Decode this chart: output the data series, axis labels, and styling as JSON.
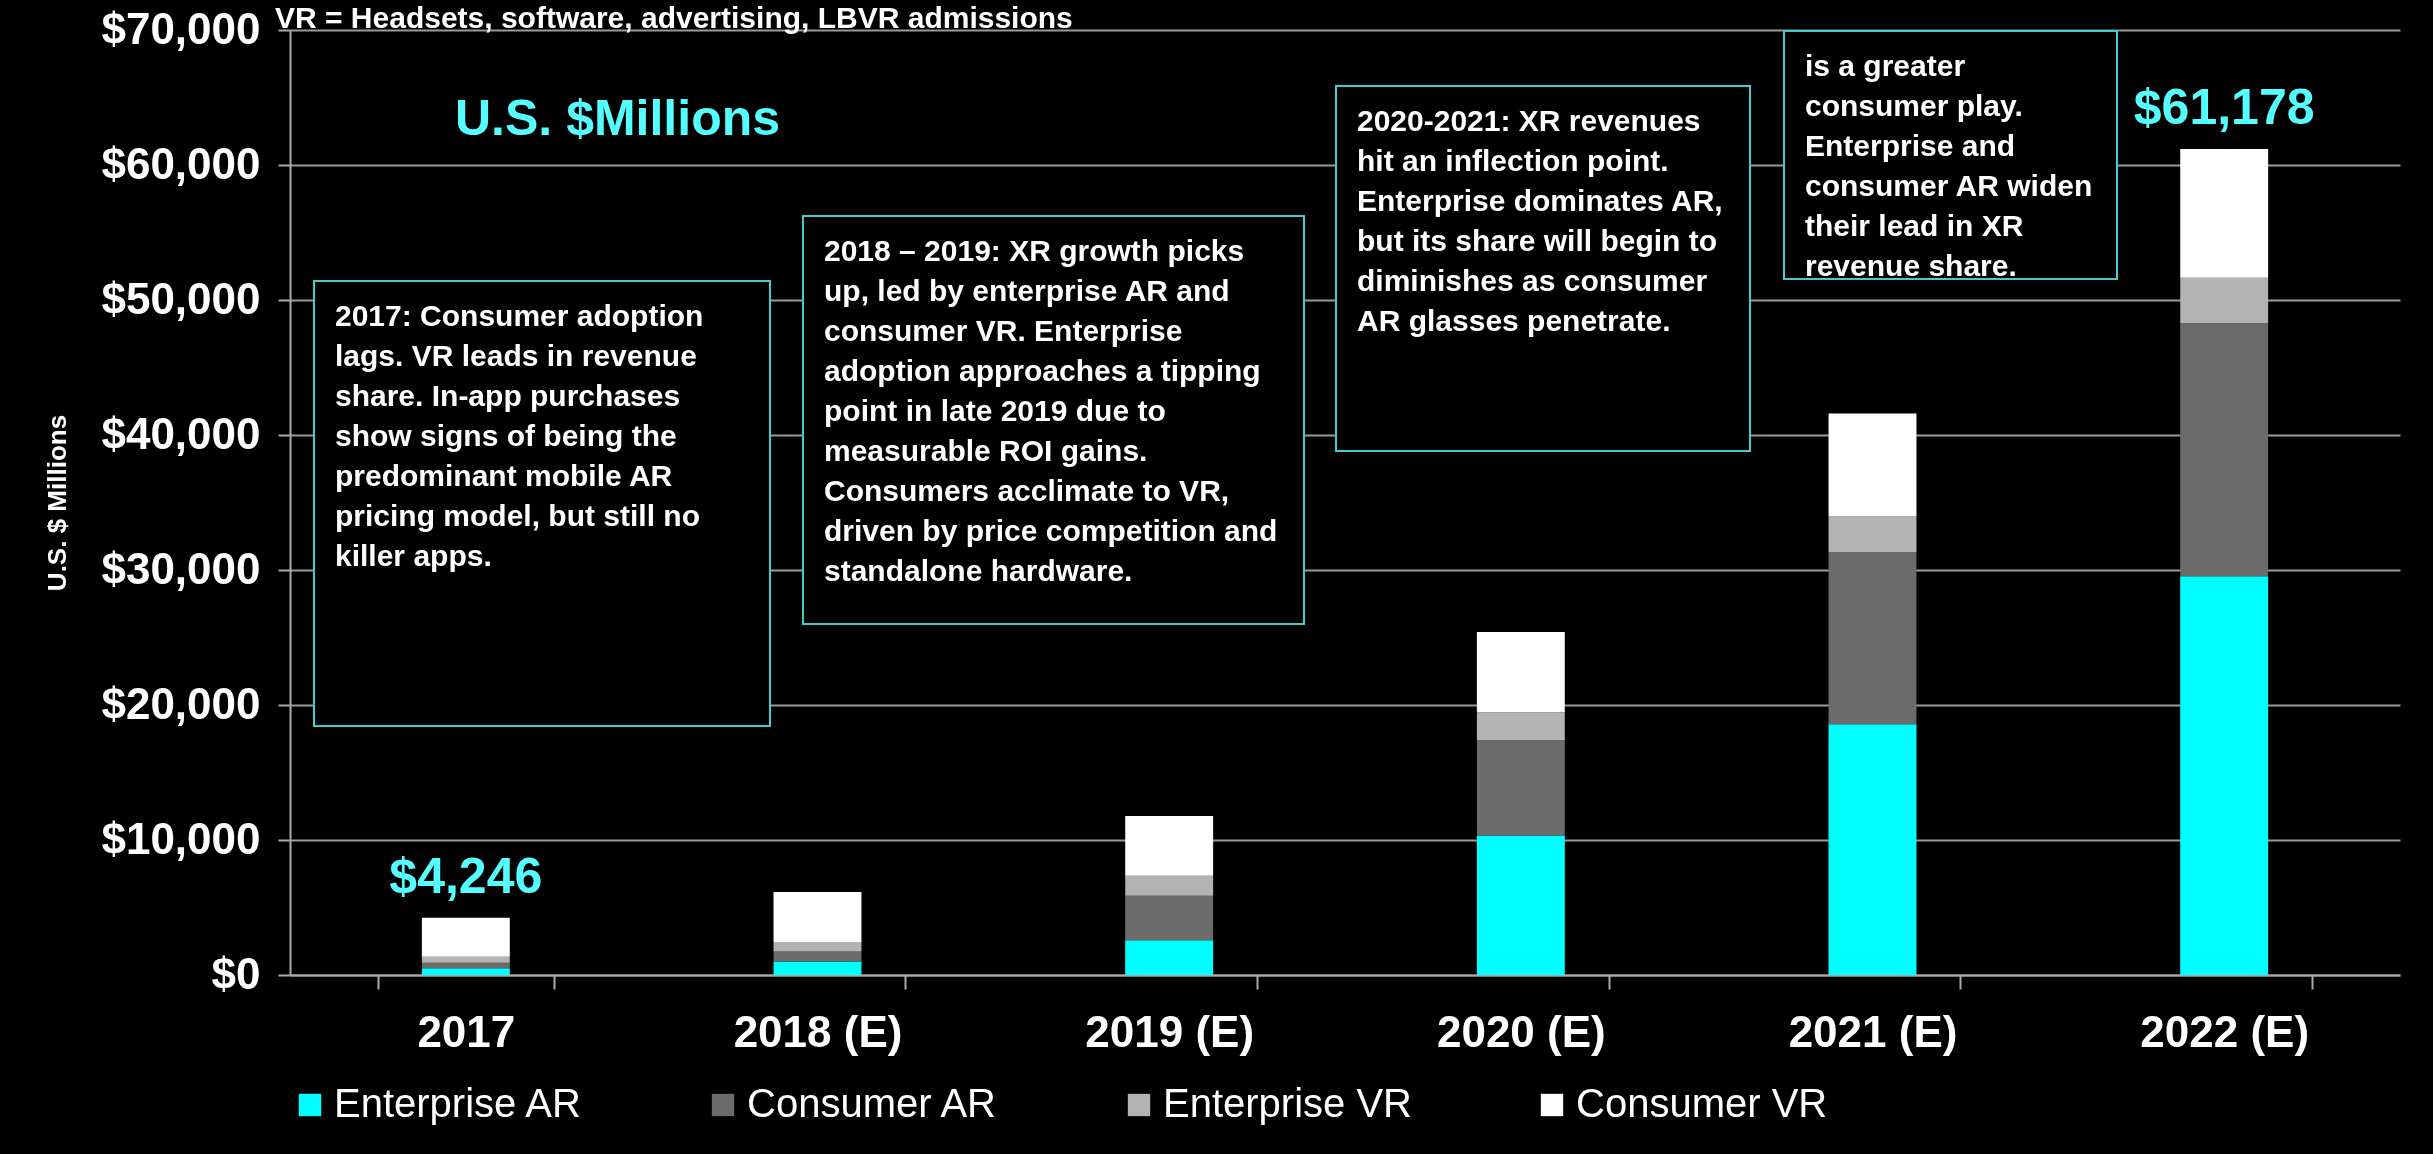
{
  "chart_data": {
    "type": "bar",
    "stacked": true,
    "ylabel": "U.S. $ Millions",
    "categories": [
      "2017",
      "2018 (E)",
      "2019 (E)",
      "2020 (E)",
      "2021 (E)",
      "2022 (E)"
    ],
    "series": [
      {
        "name": "Enterprise AR",
        "color": "#00ffff",
        "values": [
          500,
          1000,
          2570,
          10330,
          18580,
          29530
        ]
      },
      {
        "name": "Consumer AR",
        "color": "#6b6b6b",
        "values": [
          400,
          750,
          3300,
          7050,
          12740,
          18770
        ]
      },
      {
        "name": "Enterprise VR",
        "color": "#b3b3b3",
        "values": [
          450,
          700,
          1480,
          2080,
          2640,
          3350
        ]
      },
      {
        "name": "Consumer VR",
        "color": "#ffffff",
        "values": [
          2896,
          3700,
          4420,
          5940,
          7640,
          9528
        ]
      }
    ],
    "totals": [
      "$4,246",
      null,
      null,
      null,
      null,
      "$61,178"
    ],
    "ylim": [
      0,
      70000
    ],
    "yticks": [
      {
        "value": 0,
        "label": "$0"
      },
      {
        "value": 10000,
        "label": "$10,000"
      },
      {
        "value": 20000,
        "label": "$20,000"
      },
      {
        "value": 30000,
        "label": "$30,000"
      },
      {
        "value": 40000,
        "label": "$40,000"
      },
      {
        "value": 50000,
        "label": "$50,000"
      },
      {
        "value": 60000,
        "label": "$60,000"
      },
      {
        "value": 70000,
        "label": "$70,000"
      }
    ],
    "grid": "y",
    "legend": "bottom",
    "annotations": [
      "VR = Headsets, software, advertising, LBVR admissions",
      "U.S. $Millions",
      "2017: Consumer adoption lags. VR leads in revenue share. In-app purchases show signs of being the predominant mobile AR pricing model, but still no killer apps.",
      "2018 – 2019: XR growth picks up, led by enterprise AR and consumer VR.  Enterprise adoption approaches a tipping point in late 2019 due to measurable ROI gains. Consumers acclimate to VR, driven by price competition and standalone hardware.",
      "2020-2021: XR revenues hit an inflection point. Enterprise dominates AR, but its share will begin to diminishes as consumer AR glasses penetrate.",
      "is a greater consumer play. Enterprise and consumer AR widen their lead in XR revenue share."
    ]
  }
}
